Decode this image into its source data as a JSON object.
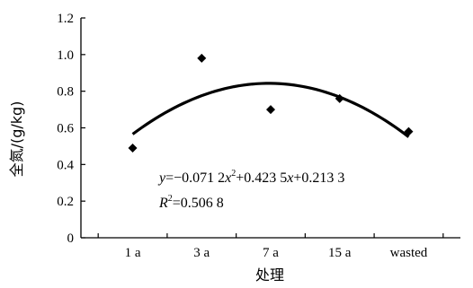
{
  "chart_data": {
    "type": "scatter",
    "categories": [
      "1 a",
      "3 a",
      "7 a",
      "15 a",
      "wasted"
    ],
    "series": [
      {
        "values": [
          0.49,
          0.98,
          0.7,
          0.76,
          0.58
        ]
      }
    ],
    "trendline": {
      "type": "polynomial",
      "coefficients": [
        -0.0712,
        0.4235,
        0.2133
      ],
      "equation": "y=−0.071 2x²+0.423 5x+0.213 3",
      "r_squared": "R²=0.506 8"
    },
    "xlabel": "处理",
    "ylabel": "全氮/(g/kg)",
    "ylim": [
      0,
      1.2
    ],
    "yticks": [
      "0",
      "0.2",
      "0.4",
      "0.6",
      "0.8",
      "1.0",
      "1.2"
    ],
    "grid": false
  }
}
